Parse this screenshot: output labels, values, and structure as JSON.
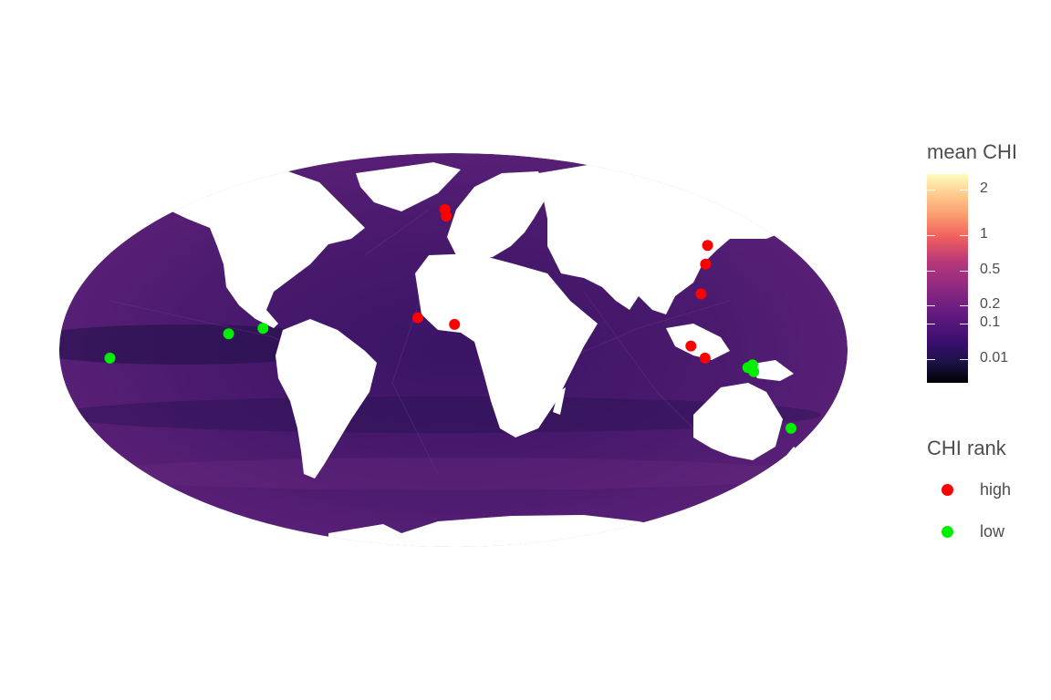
{
  "legend": {
    "mean_chi": {
      "title": "mean CHI",
      "ticks": [
        "2",
        "1",
        "0.5",
        "0.2",
        "0.1",
        "0.01"
      ]
    },
    "chi_rank": {
      "title": "CHI rank",
      "items": [
        {
          "label": "high",
          "color": "#ff0000"
        },
        {
          "label": "low",
          "color": "#00ee00"
        }
      ]
    }
  },
  "colors": {
    "ocean_dark": "#2b1255",
    "ocean_mid": "#4a1a6e",
    "ocean_light": "#6a2a82",
    "land": "#ffffff",
    "high": "#ff0000",
    "low": "#00ee00"
  },
  "map": {
    "projection": "Mollweide",
    "sites_high": [
      {
        "lon": -5.5,
        "lat": 55.5
      },
      {
        "lon": -4.5,
        "lat": 52.5
      },
      {
        "lon": -16.5,
        "lat": 12.0
      },
      {
        "lon": 0.5,
        "lat": 9.5
      },
      {
        "lon": 137.0,
        "lat": 40.0
      },
      {
        "lon": 128.0,
        "lat": 32.5
      },
      {
        "lon": 118.0,
        "lat": 21.0
      },
      {
        "lon": 108.5,
        "lat": 1.5
      },
      {
        "lon": 115.0,
        "lat": -3.0
      }
    ],
    "sites_low": [
      {
        "lon": -157.0,
        "lat": -3.0
      },
      {
        "lon": -103.0,
        "lat": 6.0
      },
      {
        "lon": -87.5,
        "lat": 8.0
      },
      {
        "lon": 135.0,
        "lat": -6.5
      },
      {
        "lon": 137.0,
        "lat": -5.5
      },
      {
        "lon": 138.0,
        "lat": -8.0
      },
      {
        "lon": 168.0,
        "lat": -29.5
      }
    ]
  }
}
